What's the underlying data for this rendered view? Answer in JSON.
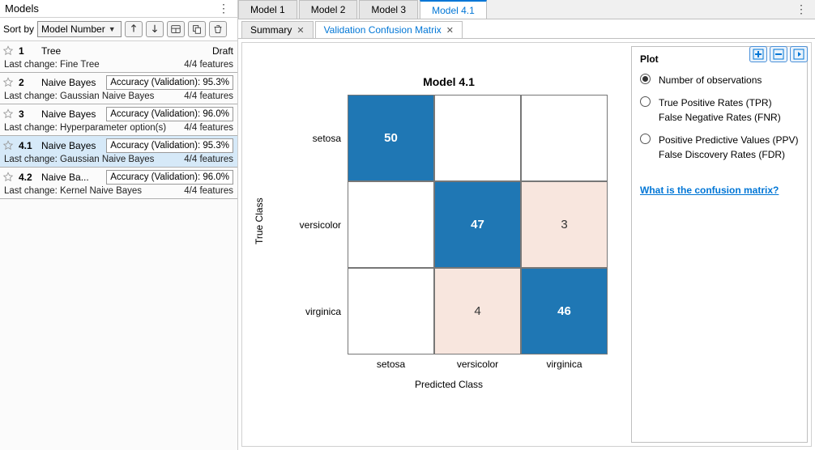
{
  "left": {
    "title": "Models",
    "sort_label": "Sort by",
    "sort_value": "Model Number",
    "icons": [
      "sort-asc",
      "sort-desc",
      "layout",
      "copy",
      "trash"
    ],
    "items": [
      {
        "num": "1",
        "name": "Tree",
        "metric": null,
        "draft": "Draft",
        "sub_left": "Last change: Fine Tree",
        "sub_right": "4/4 features",
        "selected": false
      },
      {
        "num": "2",
        "name": "Naive Bayes",
        "metric": "Accuracy (Validation): 95.3%",
        "draft": null,
        "sub_left": "Last change: Gaussian Naive Bayes",
        "sub_right": "4/4 features",
        "selected": false
      },
      {
        "num": "3",
        "name": "Naive Bayes",
        "metric": "Accuracy (Validation): 96.0%",
        "draft": null,
        "sub_left": "Last change: Hyperparameter option(s)",
        "sub_right": "4/4 features",
        "selected": false
      },
      {
        "num": "4.1",
        "name": "Naive Bayes",
        "metric": "Accuracy (Validation): 95.3%",
        "draft": null,
        "sub_left": "Last change: Gaussian Naive Bayes",
        "sub_right": "4/4 features",
        "selected": true
      },
      {
        "num": "4.2",
        "name": "Naive Ba...",
        "metric": "Accuracy (Validation): 96.0%",
        "draft": null,
        "sub_left": "Last change: Kernel Naive Bayes",
        "sub_right": "4/4 features",
        "selected": false
      }
    ]
  },
  "top_tabs": [
    {
      "label": "Model 1",
      "active": false
    },
    {
      "label": "Model 2",
      "active": false
    },
    {
      "label": "Model 3",
      "active": false
    },
    {
      "label": "Model 4.1",
      "active": true
    }
  ],
  "sub_tabs": [
    {
      "label": "Summary",
      "active": false,
      "closable": true
    },
    {
      "label": "Validation Confusion Matrix",
      "active": true,
      "closable": true
    }
  ],
  "confusion": {
    "title": "Model 4.1",
    "y_axis": "True Class",
    "x_axis": "Predicted Class",
    "row_labels": [
      "setosa",
      "versicolor",
      "virginica"
    ],
    "col_labels": [
      "setosa",
      "versicolor",
      "virginica"
    ],
    "cells": [
      [
        {
          "v": "50",
          "cls": "hi"
        },
        {
          "v": "",
          "cls": "zero"
        },
        {
          "v": "",
          "cls": "zero"
        }
      ],
      [
        {
          "v": "",
          "cls": "zero"
        },
        {
          "v": "47",
          "cls": "hi"
        },
        {
          "v": "3",
          "cls": "lo"
        }
      ],
      [
        {
          "v": "",
          "cls": "zero"
        },
        {
          "v": "4",
          "cls": "lo"
        },
        {
          "v": "46",
          "cls": "hi"
        }
      ]
    ],
    "colors": {
      "hi": "#1F77B4",
      "lo": "#f8e6de",
      "zero": "#ffffff",
      "border": "#777777"
    }
  },
  "side": {
    "heading": "Plot",
    "options": [
      {
        "text": "Number of observations",
        "checked": true
      },
      {
        "text": "True Positive Rates (TPR)\nFalse Negative Rates (FNR)",
        "checked": false
      },
      {
        "text": "Positive Predictive Values (PPV)\nFalse Discovery Rates (FDR)",
        "checked": false
      }
    ],
    "help": "What is the confusion matrix?"
  }
}
